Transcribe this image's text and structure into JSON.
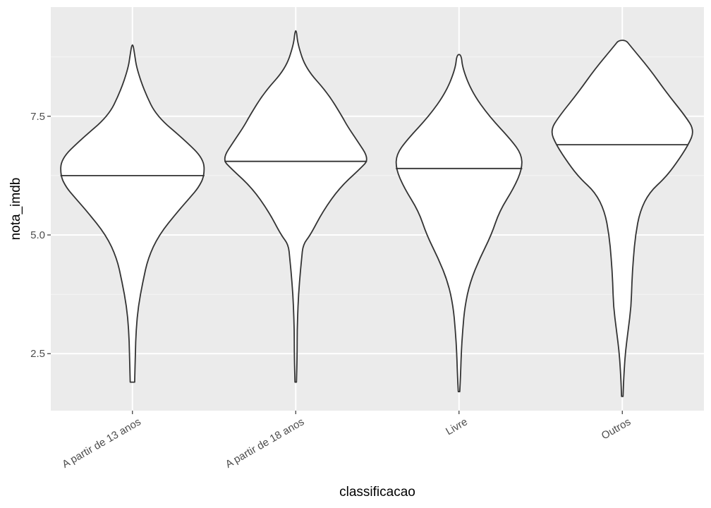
{
  "chart_data": {
    "type": "violin",
    "xlabel": "classificacao",
    "ylabel": "nota_imdb",
    "ylim": [
      1.3,
      9.8
    ],
    "yticks": [
      {
        "value": 2.5,
        "label": "2.5"
      },
      {
        "value": 5.0,
        "label": "5.0"
      },
      {
        "value": 7.5,
        "label": "7.5"
      }
    ],
    "y_minor_gridlines": [
      3.75,
      6.25,
      8.75
    ],
    "grid": true,
    "categories": [
      "A partir de 13 anos",
      "A partir de 18 anos",
      "Livre",
      "Outros"
    ],
    "series": [
      {
        "category": "A partir de 13 anos",
        "min": 1.9,
        "max": 9.0,
        "median": 6.25,
        "density": [
          [
            1.9,
            0.03
          ],
          [
            2.5,
            0.04
          ],
          [
            3.0,
            0.05
          ],
          [
            3.5,
            0.08
          ],
          [
            4.0,
            0.14
          ],
          [
            4.5,
            0.21
          ],
          [
            5.0,
            0.36
          ],
          [
            5.5,
            0.62
          ],
          [
            5.8,
            0.79
          ],
          [
            6.0,
            0.9
          ],
          [
            6.25,
            0.98
          ],
          [
            6.6,
            0.97
          ],
          [
            7.0,
            0.71
          ],
          [
            7.5,
            0.33
          ],
          [
            8.0,
            0.17
          ],
          [
            8.5,
            0.06
          ],
          [
            8.8,
            0.03
          ],
          [
            9.0,
            0.01
          ]
        ]
      },
      {
        "category": "A partir de 18 anos",
        "min": 1.9,
        "max": 9.3,
        "median": 6.55,
        "density": [
          [
            1.9,
            0.01
          ],
          [
            2.5,
            0.02
          ],
          [
            3.0,
            0.02
          ],
          [
            3.5,
            0.03
          ],
          [
            4.0,
            0.05
          ],
          [
            4.5,
            0.08
          ],
          [
            4.8,
            0.1
          ],
          [
            5.0,
            0.2
          ],
          [
            5.5,
            0.37
          ],
          [
            6.0,
            0.6
          ],
          [
            6.4,
            0.88
          ],
          [
            6.6,
            1.0
          ],
          [
            7.0,
            0.83
          ],
          [
            7.3,
            0.7
          ],
          [
            7.5,
            0.63
          ],
          [
            8.0,
            0.43
          ],
          [
            8.5,
            0.14
          ],
          [
            9.0,
            0.03
          ],
          [
            9.3,
            0.01
          ]
        ]
      },
      {
        "category": "Livre",
        "min": 1.7,
        "max": 8.8,
        "median": 6.4,
        "density": [
          [
            1.7,
            0.01
          ],
          [
            2.0,
            0.02
          ],
          [
            2.5,
            0.03
          ],
          [
            3.0,
            0.05
          ],
          [
            3.5,
            0.08
          ],
          [
            4.0,
            0.15
          ],
          [
            4.5,
            0.28
          ],
          [
            5.0,
            0.44
          ],
          [
            5.5,
            0.55
          ],
          [
            6.0,
            0.75
          ],
          [
            6.4,
            0.86
          ],
          [
            6.7,
            0.85
          ],
          [
            7.0,
            0.71
          ],
          [
            7.5,
            0.41
          ],
          [
            8.0,
            0.18
          ],
          [
            8.5,
            0.05
          ],
          [
            8.8,
            0.03
          ]
        ]
      },
      {
        "category": "Outros",
        "min": 1.6,
        "max": 9.1,
        "median": 6.9,
        "density": [
          [
            1.6,
            0.01
          ],
          [
            2.0,
            0.02
          ],
          [
            2.5,
            0.04
          ],
          [
            3.0,
            0.08
          ],
          [
            3.5,
            0.12
          ],
          [
            4.0,
            0.13
          ],
          [
            4.5,
            0.15
          ],
          [
            5.0,
            0.18
          ],
          [
            5.5,
            0.24
          ],
          [
            5.9,
            0.37
          ],
          [
            6.2,
            0.58
          ],
          [
            6.5,
            0.73
          ],
          [
            6.9,
            0.9
          ],
          [
            7.2,
            0.98
          ],
          [
            7.5,
            0.86
          ],
          [
            8.0,
            0.6
          ],
          [
            8.5,
            0.37
          ],
          [
            9.0,
            0.1
          ],
          [
            9.1,
            0.05
          ]
        ]
      }
    ]
  }
}
